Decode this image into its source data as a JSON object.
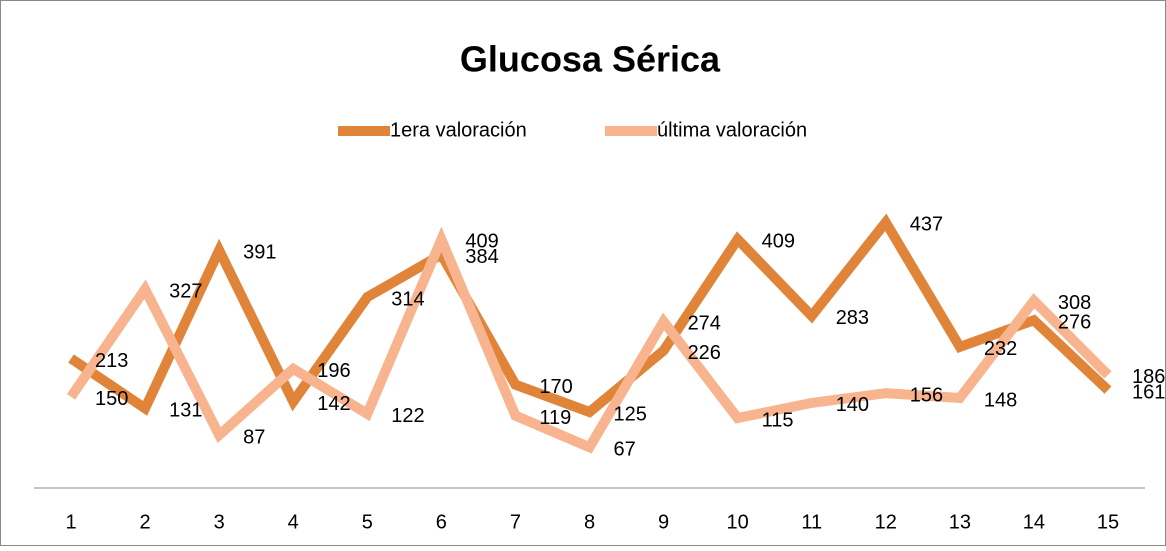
{
  "chart_data": {
    "type": "line",
    "title": "Glucosa Sérica",
    "categories": [
      "1",
      "2",
      "3",
      "4",
      "5",
      "6",
      "7",
      "8",
      "9",
      "10",
      "11",
      "12",
      "13",
      "14",
      "15"
    ],
    "series": [
      {
        "name": "1era valoración",
        "color": "#e0843a",
        "values": [
          213,
          131,
          391,
          142,
          314,
          384,
          170,
          125,
          226,
          409,
          283,
          437,
          232,
          276,
          161
        ]
      },
      {
        "name": "última valoración",
        "color": "#f8b48f",
        "values": [
          150,
          327,
          87,
          196,
          122,
          409,
          119,
          67,
          274,
          115,
          140,
          156,
          148,
          308,
          186
        ]
      }
    ],
    "ylim": [
      0,
      500
    ],
    "legend": "top"
  }
}
